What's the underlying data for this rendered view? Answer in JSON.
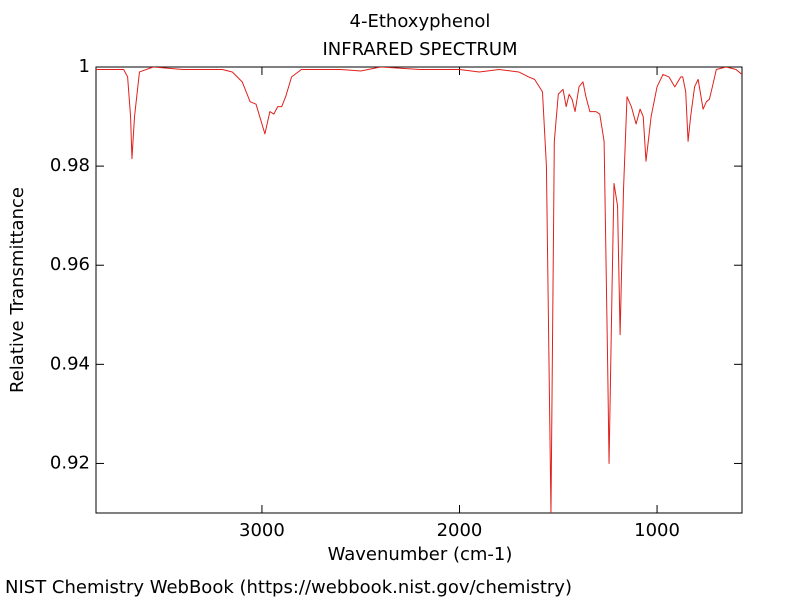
{
  "chart_data": {
    "type": "line",
    "title": "4-Ethoxyphenol",
    "subtitle": "INFRARED SPECTRUM",
    "x_label": "Wavenumber (cm-1)",
    "y_label": "Relative Transmittance",
    "footer": "NIST Chemistry WebBook (https://webbook.nist.gov/chemistry)",
    "xlim": [
      3840,
      570
    ],
    "ylim": [
      0.91,
      1
    ],
    "xticks": [
      3000,
      2000,
      1000
    ],
    "yticks": [
      1,
      0.98,
      0.96,
      0.94,
      0.92
    ],
    "grid": false,
    "x": [
      3840,
      3700,
      3680,
      3665,
      3658,
      3645,
      3620,
      3550,
      3400,
      3200,
      3150,
      3100,
      3060,
      3030,
      2985,
      2960,
      2940,
      2920,
      2900,
      2880,
      2850,
      2800,
      2600,
      2500,
      2400,
      2200,
      2000,
      1900,
      1800,
      1700,
      1650,
      1620,
      1580,
      1560,
      1537,
      1520,
      1500,
      1476,
      1460,
      1445,
      1430,
      1415,
      1395,
      1375,
      1360,
      1340,
      1310,
      1290,
      1268,
      1250,
      1243,
      1228,
      1218,
      1200,
      1187,
      1170,
      1152,
      1130,
      1106,
      1086,
      1070,
      1056,
      1030,
      1000,
      970,
      940,
      910,
      880,
      870,
      855,
      843,
      830,
      810,
      792,
      767,
      750,
      735,
      720,
      700,
      650,
      600,
      570
    ],
    "series": [
      {
        "name": "4-Ethoxyphenol",
        "color": "#e0201c",
        "values": [
          0.9995,
          0.9995,
          0.998,
          0.99,
          0.9815,
          0.99,
          0.999,
          1.0,
          0.9995,
          0.9995,
          0.999,
          0.997,
          0.993,
          0.9925,
          0.9865,
          0.991,
          0.9905,
          0.992,
          0.992,
          0.994,
          0.998,
          0.9995,
          0.9995,
          0.9992,
          1.0,
          0.9995,
          0.9995,
          0.999,
          0.9995,
          0.999,
          0.998,
          0.9975,
          0.995,
          0.98,
          0.91,
          0.985,
          0.9945,
          0.9955,
          0.992,
          0.9945,
          0.9935,
          0.991,
          0.996,
          0.997,
          0.994,
          0.991,
          0.991,
          0.9905,
          0.985,
          0.94,
          0.92,
          0.955,
          0.9765,
          0.972,
          0.946,
          0.975,
          0.994,
          0.992,
          0.9885,
          0.9915,
          0.99,
          0.981,
          0.99,
          0.996,
          0.9985,
          0.998,
          0.996,
          0.998,
          0.998,
          0.995,
          0.985,
          0.99,
          0.996,
          0.9975,
          0.9915,
          0.993,
          0.9935,
          0.996,
          0.9995,
          1.0,
          0.9995,
          0.9985
        ]
      }
    ]
  }
}
